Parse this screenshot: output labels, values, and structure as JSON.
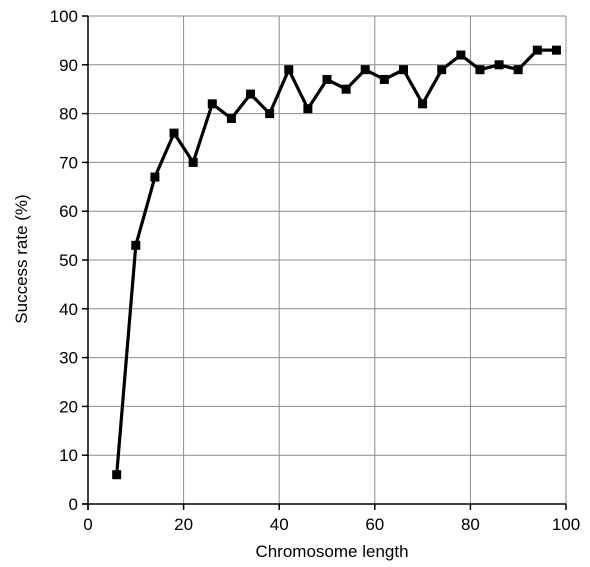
{
  "chart_data": {
    "type": "line",
    "title": "",
    "xlabel": "Chromosome length",
    "ylabel": "Success rate (%)",
    "xlim": [
      0,
      100
    ],
    "ylim": [
      0,
      100
    ],
    "xticks": [
      0,
      20,
      40,
      60,
      80,
      100
    ],
    "yticks": [
      0,
      10,
      20,
      30,
      40,
      50,
      60,
      70,
      80,
      90,
      100
    ],
    "xtick_labels": [
      "0",
      "20",
      "40",
      "60",
      "80",
      "100"
    ],
    "ytick_labels": [
      "0",
      "10",
      "20",
      "30",
      "40",
      "50",
      "60",
      "70",
      "80",
      "90",
      "100"
    ],
    "grid": true,
    "legend": "none",
    "series": [
      {
        "color": "#000000",
        "marker": "square",
        "x": [
          6,
          10,
          14,
          18,
          22,
          26,
          30,
          34,
          38,
          42,
          46,
          50,
          54,
          58,
          62,
          66,
          70,
          74,
          78,
          82,
          86,
          90,
          94,
          98
        ],
        "y": [
          6,
          53,
          67,
          76,
          70,
          82,
          79,
          84,
          80,
          89,
          81,
          87,
          85,
          89,
          87,
          89,
          82,
          89,
          92,
          89,
          90,
          89,
          93,
          93
        ]
      }
    ]
  }
}
